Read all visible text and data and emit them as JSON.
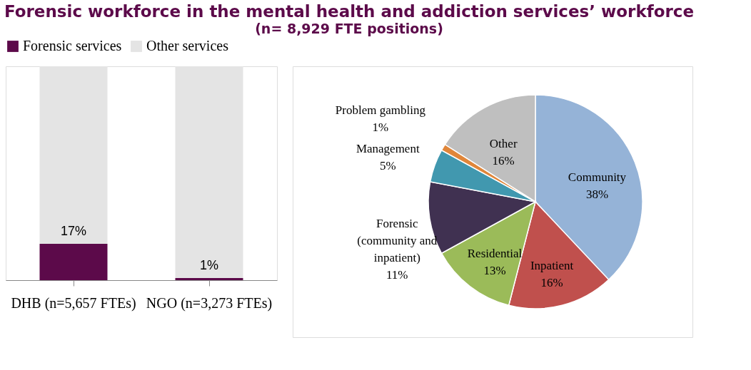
{
  "chart_data": [
    {
      "type": "bar",
      "title": "Forensic workforce in the mental health and addiction services’ workforce",
      "subtitle": "(n= 8,929 FTE positions)",
      "categories": [
        "DHB (n=5,657 FTEs)",
        "NGO (n=3,273 FTEs)"
      ],
      "stacked": true,
      "legend": "top",
      "series": [
        {
          "name": "Forensic services",
          "color": "#5c0a4a",
          "values": [
            17,
            1
          ],
          "value_labels": [
            "17%",
            "1%"
          ]
        },
        {
          "name": "Other services",
          "color": "#e4e4e4",
          "values": [
            83,
            99
          ]
        }
      ]
    },
    {
      "type": "pie",
      "categories": [
        "Community",
        "Inpatient",
        "Residential",
        "Forensic (community and inpatient)",
        "Management",
        "Problem gambling",
        "Other"
      ],
      "values": [
        38,
        16,
        13,
        11,
        5,
        1,
        16
      ],
      "value_labels": [
        "38%",
        "16%",
        "13%",
        "11%",
        "5%",
        "1%",
        "16%"
      ],
      "colors": [
        "#95b3d7",
        "#c0504d",
        "#9bbb59",
        "#403151",
        "#4198af",
        "#e0863a",
        "#bfbfbf"
      ]
    }
  ]
}
